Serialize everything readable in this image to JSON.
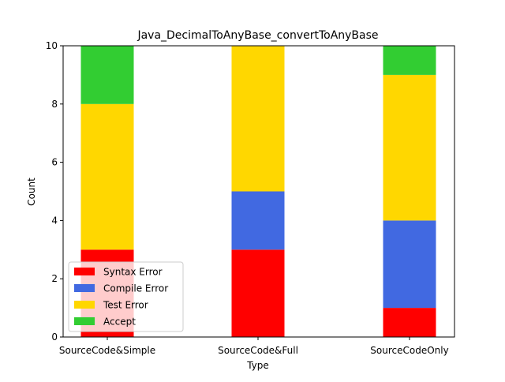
{
  "chart_data": {
    "type": "bar",
    "stacked": true,
    "title": "Java_DecimalToAnyBase_convertToAnyBase",
    "xlabel": "Type",
    "ylabel": "Count",
    "ylim": [
      0,
      10
    ],
    "yticks": [
      0,
      2,
      4,
      6,
      8,
      10
    ],
    "categories": [
      "SourceCode&Simple",
      "SourceCode&Full",
      "SourceCodeOnly"
    ],
    "series": [
      {
        "name": "Syntax Error",
        "color": "#ff0000",
        "values": [
          3,
          3,
          1
        ]
      },
      {
        "name": "Compile Error",
        "color": "#4169e1",
        "values": [
          0,
          2,
          3
        ]
      },
      {
        "name": "Test Error",
        "color": "#ffd700",
        "values": [
          5,
          5,
          5
        ]
      },
      {
        "name": "Accept",
        "color": "#32cd32",
        "values": [
          2,
          0,
          1
        ]
      }
    ],
    "grid": false,
    "legend_position": "lower-left"
  }
}
